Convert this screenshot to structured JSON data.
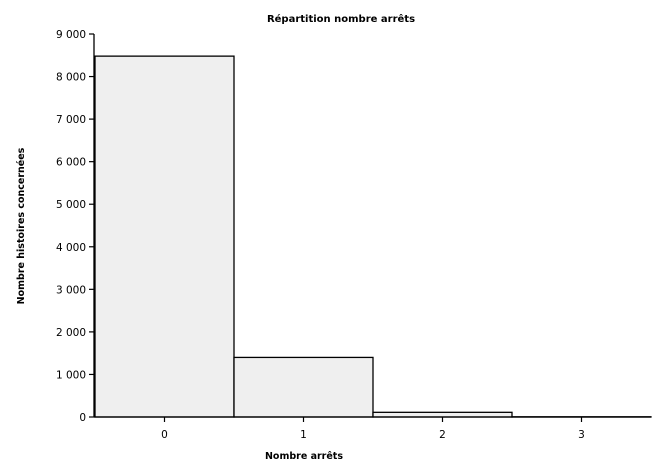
{
  "chart_data": {
    "type": "bar",
    "title": "Répartition nombre arrêts",
    "xlabel": "Nombre arrêts",
    "ylabel": "Nombre histoires concernées",
    "categories": [
      "0",
      "1",
      "2",
      "3"
    ],
    "values": [
      8480,
      1400,
      110,
      5
    ],
    "ylim": [
      0,
      9000
    ],
    "yticks": [
      0,
      1000,
      2000,
      3000,
      4000,
      5000,
      6000,
      7000,
      8000,
      9000
    ],
    "ytick_labels": [
      "0",
      "1 000",
      "2 000",
      "3 000",
      "4 000",
      "5 000",
      "6 000",
      "7 000",
      "8 000",
      "9 000"
    ],
    "grid": false,
    "legend": "none",
    "colors": {
      "bar_fill": "#efefef",
      "bar_stroke": "#000000"
    }
  }
}
